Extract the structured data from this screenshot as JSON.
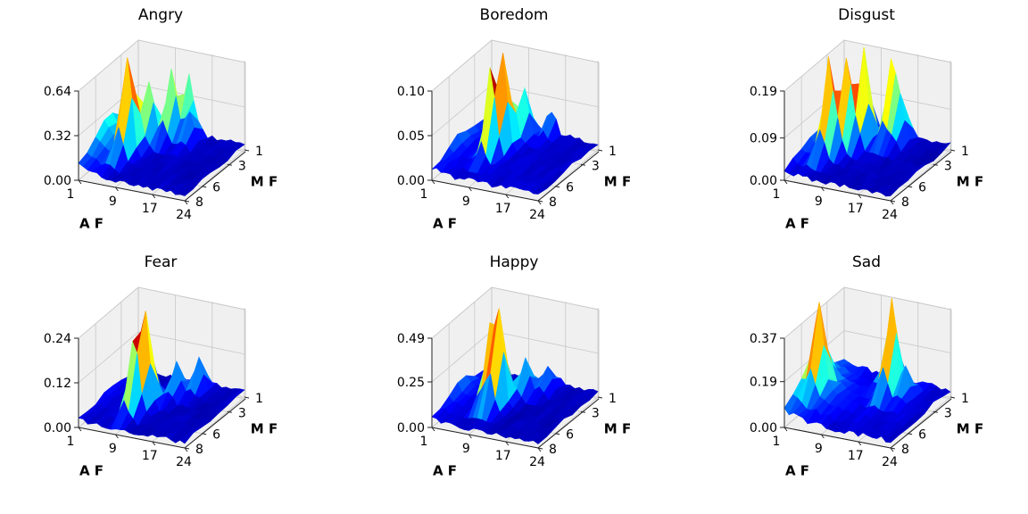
{
  "chart_data": [
    {
      "type": "surface3d",
      "title": "Angry",
      "xlabel": "A F",
      "ylabel": "M F",
      "zticks": [
        "0.00",
        "0.32",
        "0.64"
      ],
      "zlim": [
        0,
        0.64
      ],
      "xticks": [
        "1",
        "9",
        "17",
        "24"
      ],
      "yticks": [
        "1",
        "3",
        "6",
        "8"
      ],
      "colormap": "jet",
      "surface": {
        "x_range": [
          1,
          24
        ],
        "y_range": [
          1,
          8
        ],
        "base": 0.04,
        "ridge_a": 0.28,
        "ridge_k": 0.3,
        "peaks": [
          {
            "af": 6,
            "mf": 5,
            "h": 0.72
          },
          {
            "af": 7,
            "mf": 3,
            "h": 0.45
          },
          {
            "af": 10,
            "mf": 2,
            "h": 0.5
          },
          {
            "af": 12,
            "mf": 1,
            "h": 0.35
          },
          {
            "af": 14,
            "mf": 2,
            "h": 0.2
          }
        ]
      }
    },
    {
      "type": "surface3d",
      "title": "Boredom",
      "xlabel": "A F",
      "ylabel": "M F",
      "zticks": [
        "0.00",
        "0.05",
        "0.10"
      ],
      "zlim": [
        0,
        0.1
      ],
      "xticks": [
        "1",
        "9",
        "17",
        "24"
      ],
      "yticks": [
        "1",
        "3",
        "6",
        "8"
      ],
      "colormap": "jet",
      "surface": {
        "x_range": [
          1,
          24
        ],
        "y_range": [
          1,
          8
        ],
        "base": 0.008,
        "ridge_a": 0.02,
        "ridge_k": 0.4,
        "peaks": [
          {
            "af": 9,
            "mf": 4,
            "h": 0.105
          },
          {
            "af": 8,
            "mf": 5,
            "h": 0.07
          },
          {
            "af": 10,
            "mf": 2,
            "h": 0.05
          },
          {
            "af": 14,
            "mf": 1,
            "h": 0.03
          }
        ]
      }
    },
    {
      "type": "surface3d",
      "title": "Disgust",
      "xlabel": "A F",
      "ylabel": "M F",
      "zticks": [
        "0.00",
        "0.09",
        "0.19"
      ],
      "zlim": [
        0,
        0.19
      ],
      "xticks": [
        "1",
        "9",
        "17",
        "24"
      ],
      "yticks": [
        "1",
        "3",
        "6",
        "8"
      ],
      "colormap": "jet",
      "surface": {
        "x_range": [
          1,
          24
        ],
        "y_range": [
          1,
          8
        ],
        "base": 0.012,
        "ridge_a": 0.04,
        "ridge_k": 0.4,
        "peaks": [
          {
            "af": 5,
            "mf": 5,
            "h": 0.2
          },
          {
            "af": 7,
            "mf": 4,
            "h": 0.19
          },
          {
            "af": 9,
            "mf": 3,
            "h": 0.19
          },
          {
            "af": 13,
            "mf": 2,
            "h": 0.17
          },
          {
            "af": 15,
            "mf": 2,
            "h": 0.1
          }
        ]
      }
    },
    {
      "type": "surface3d",
      "title": "Fear",
      "xlabel": "A F",
      "ylabel": "M F",
      "zticks": [
        "0.00",
        "0.12",
        "0.24"
      ],
      "zlim": [
        0,
        0.24
      ],
      "xticks": [
        "1",
        "9",
        "17",
        "24"
      ],
      "yticks": [
        "1",
        "3",
        "6",
        "8"
      ],
      "colormap": "jet",
      "surface": {
        "x_range": [
          1,
          24
        ],
        "y_range": [
          1,
          8
        ],
        "base": 0.015,
        "ridge_a": 0.02,
        "ridge_k": 0.4,
        "peaks": [
          {
            "af": 10,
            "mf": 5,
            "h": 0.27
          },
          {
            "af": 9,
            "mf": 6,
            "h": 0.15
          },
          {
            "af": 13,
            "mf": 3,
            "h": 0.09
          },
          {
            "af": 16,
            "mf": 2,
            "h": 0.08
          }
        ]
      }
    },
    {
      "type": "surface3d",
      "title": "Happy",
      "xlabel": "A F",
      "ylabel": "M F",
      "zticks": [
        "0.00",
        "0.25",
        "0.49"
      ],
      "zlim": [
        0,
        0.49
      ],
      "xticks": [
        "1",
        "9",
        "17",
        "24"
      ],
      "yticks": [
        "1",
        "3",
        "6",
        "8"
      ],
      "colormap": "jet",
      "surface": {
        "x_range": [
          1,
          24
        ],
        "y_range": [
          1,
          8
        ],
        "base": 0.03,
        "ridge_a": 0.1,
        "ridge_k": 0.4,
        "peaks": [
          {
            "af": 10,
            "mf": 5,
            "h": 0.55
          },
          {
            "af": 8,
            "mf": 5,
            "h": 0.38
          },
          {
            "af": 12,
            "mf": 3,
            "h": 0.18
          },
          {
            "af": 15,
            "mf": 2,
            "h": 0.14
          }
        ]
      }
    },
    {
      "type": "surface3d",
      "title": "Sad",
      "xlabel": "A F",
      "ylabel": "M F",
      "zticks": [
        "0.00",
        "0.19",
        "0.37"
      ],
      "zlim": [
        0,
        0.37
      ],
      "xticks": [
        "1",
        "9",
        "17",
        "24"
      ],
      "yticks": [
        "1",
        "3",
        "6",
        "8"
      ],
      "colormap": "jet",
      "surface": {
        "x_range": [
          1,
          24
        ],
        "y_range": [
          1,
          8
        ],
        "base": 0.03,
        "ridge_a": 0.16,
        "ridge_k": 0.22,
        "peaks": [
          {
            "af": 3,
            "mf": 5,
            "h": 0.3
          },
          {
            "af": 15,
            "mf": 3,
            "h": 0.42
          },
          {
            "af": 18,
            "mf": 3,
            "h": 0.12
          },
          {
            "af": 12,
            "mf": 2,
            "h": 0.12
          }
        ]
      }
    }
  ]
}
